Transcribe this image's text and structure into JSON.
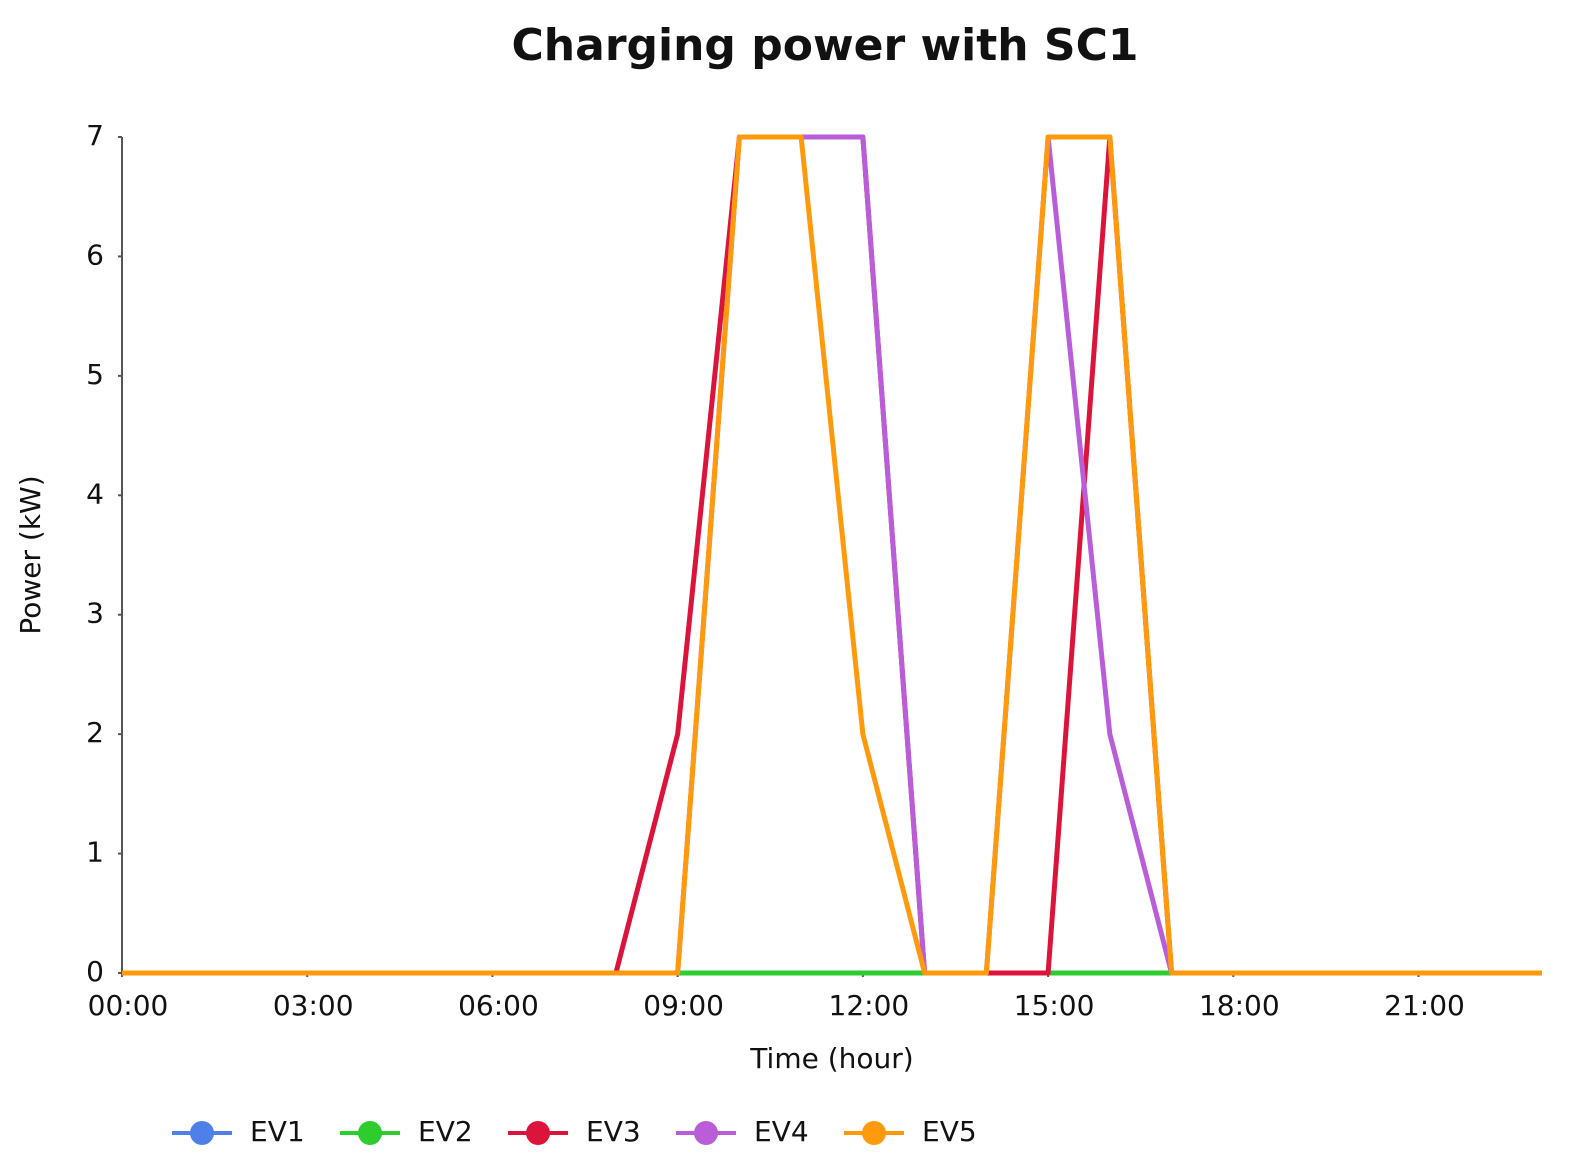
{
  "chart_data": {
    "type": "line",
    "title": "Charging power with SC1",
    "x_label": "Time (hour)",
    "y_label": "Power (kW)",
    "x": [
      0,
      1,
      2,
      3,
      4,
      5,
      6,
      7,
      8,
      9,
      10,
      11,
      12,
      13,
      14,
      15,
      16,
      17,
      18,
      19,
      20,
      21,
      22,
      23
    ],
    "xlim": [
      0,
      23
    ],
    "xticks": [
      {
        "value": 0,
        "label": "00:00"
      },
      {
        "value": 3,
        "label": "03:00"
      },
      {
        "value": 6,
        "label": "06:00"
      },
      {
        "value": 9,
        "label": "09:00"
      },
      {
        "value": 12,
        "label": "12:00"
      },
      {
        "value": 15,
        "label": "15:00"
      },
      {
        "value": 18,
        "label": "18:00"
      },
      {
        "value": 21,
        "label": "21:00"
      }
    ],
    "ylim": [
      0,
      7
    ],
    "yticks": [
      0,
      1,
      2,
      3,
      4,
      5,
      6,
      7
    ],
    "series": [
      {
        "name": "EV1",
        "color": "#4f7fe8",
        "values": [
          0,
          0,
          0,
          0,
          0,
          0,
          0,
          0,
          0,
          0,
          0,
          0,
          0,
          0,
          0,
          0,
          0,
          0,
          0,
          0,
          0,
          0,
          0,
          0
        ]
      },
      {
        "name": "EV2",
        "color": "#2ecc2e",
        "values": [
          0,
          0,
          0,
          0,
          0,
          0,
          0,
          0,
          0,
          0,
          0,
          0,
          0,
          0,
          0,
          0,
          0,
          0,
          0,
          0,
          0,
          0,
          0,
          0
        ]
      },
      {
        "name": "EV3",
        "color": "#dc143c",
        "values": [
          0,
          0,
          0,
          0,
          0,
          0,
          0,
          0,
          0,
          2,
          7,
          7,
          7,
          0,
          0,
          0,
          7,
          0,
          0,
          0,
          0,
          0,
          0,
          0
        ]
      },
      {
        "name": "EV4",
        "color": "#b95ed8",
        "values": [
          0,
          0,
          0,
          0,
          0,
          0,
          0,
          0,
          0,
          0,
          7,
          7,
          7,
          0,
          0,
          7,
          2,
          0,
          0,
          0,
          0,
          0,
          0,
          0
        ]
      },
      {
        "name": "EV5",
        "color": "#ff9a0d",
        "values": [
          0,
          0,
          0,
          0,
          0,
          0,
          0,
          0,
          0,
          0,
          7,
          7,
          2,
          0,
          0,
          7,
          7,
          0,
          0,
          0,
          0,
          0,
          0,
          0
        ]
      }
    ]
  }
}
